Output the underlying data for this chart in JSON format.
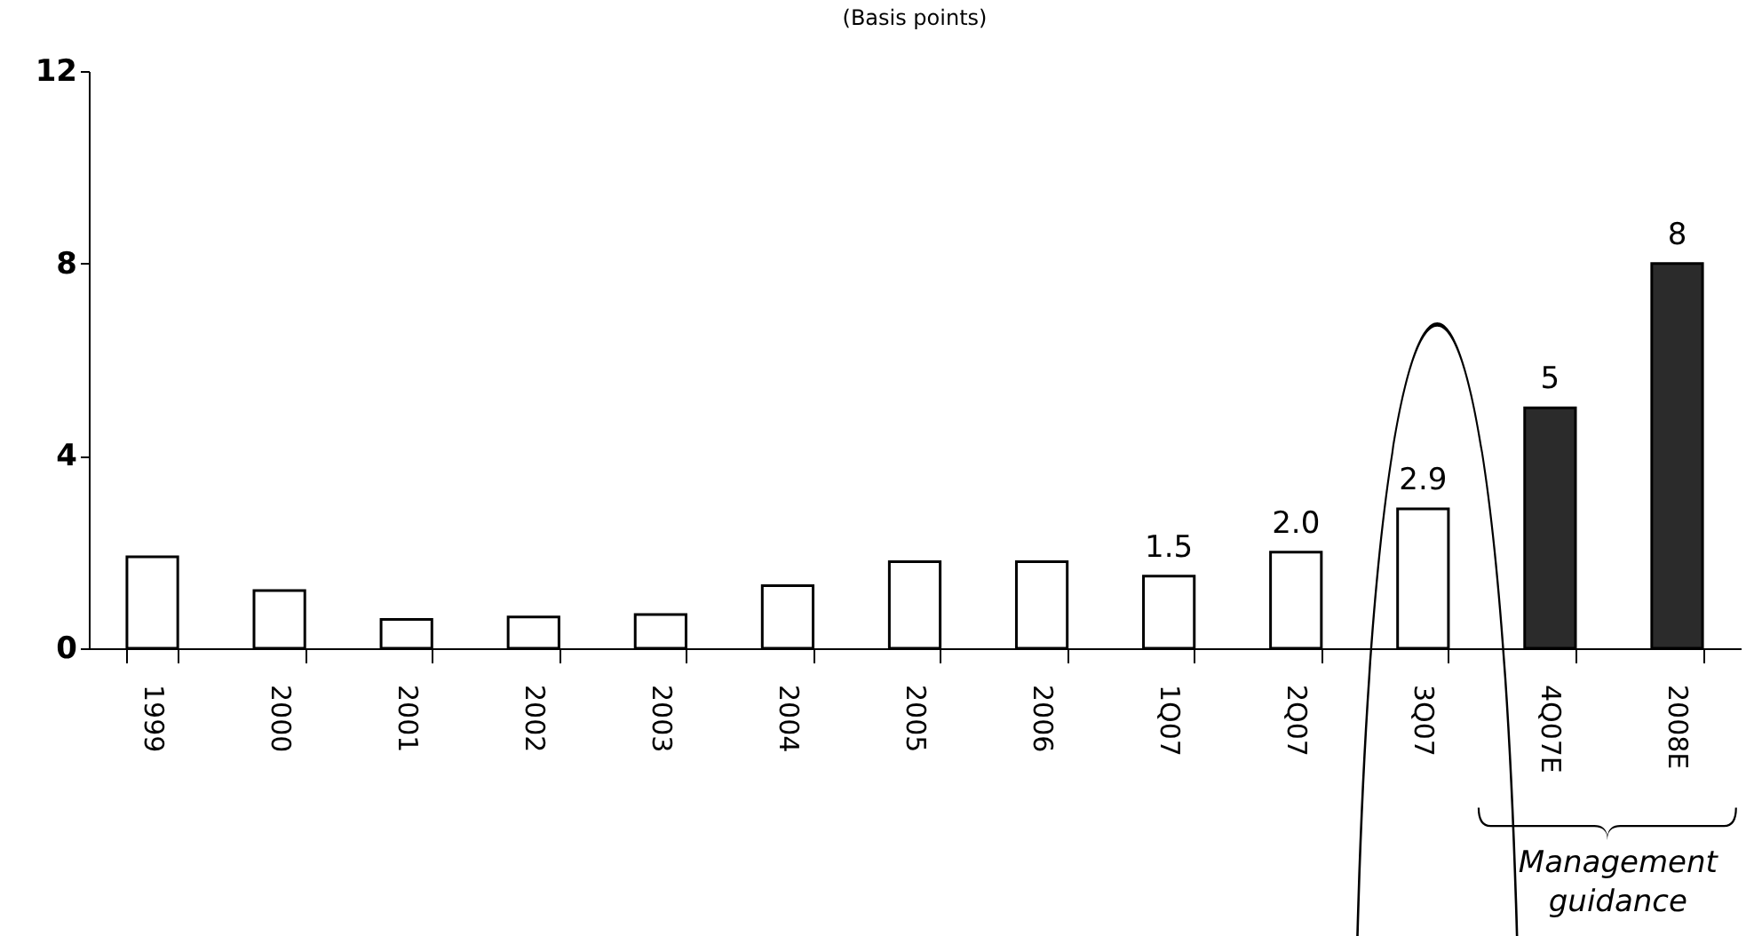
{
  "chart_data": {
    "type": "bar",
    "title": "(Basis points)",
    "categories": [
      "1999",
      "2000",
      "2001",
      "2002",
      "2003",
      "2004",
      "2005",
      "2006",
      "1Q07",
      "2Q07",
      "3Q07",
      "4Q07E",
      "2008E"
    ],
    "values": [
      1.9,
      1.2,
      0.6,
      0.65,
      0.7,
      1.3,
      1.8,
      1.8,
      1.5,
      2.0,
      2.9,
      5,
      8
    ],
    "colors": [
      "#ffffff",
      "#ffffff",
      "#ffffff",
      "#ffffff",
      "#ffffff",
      "#ffffff",
      "#ffffff",
      "#ffffff",
      "#ffffff",
      "#ffffff",
      "#ffffff",
      "#2b2b2b",
      "#2b2b2b"
    ],
    "value_labels": [
      null,
      null,
      null,
      null,
      null,
      null,
      null,
      null,
      "1.5",
      "2.0",
      "2.9",
      "5",
      "8"
    ],
    "ylim": [
      0,
      12
    ],
    "yticks": [
      0,
      4,
      8,
      12
    ],
    "grid": false,
    "annotations": [
      "Management guidance"
    ]
  }
}
